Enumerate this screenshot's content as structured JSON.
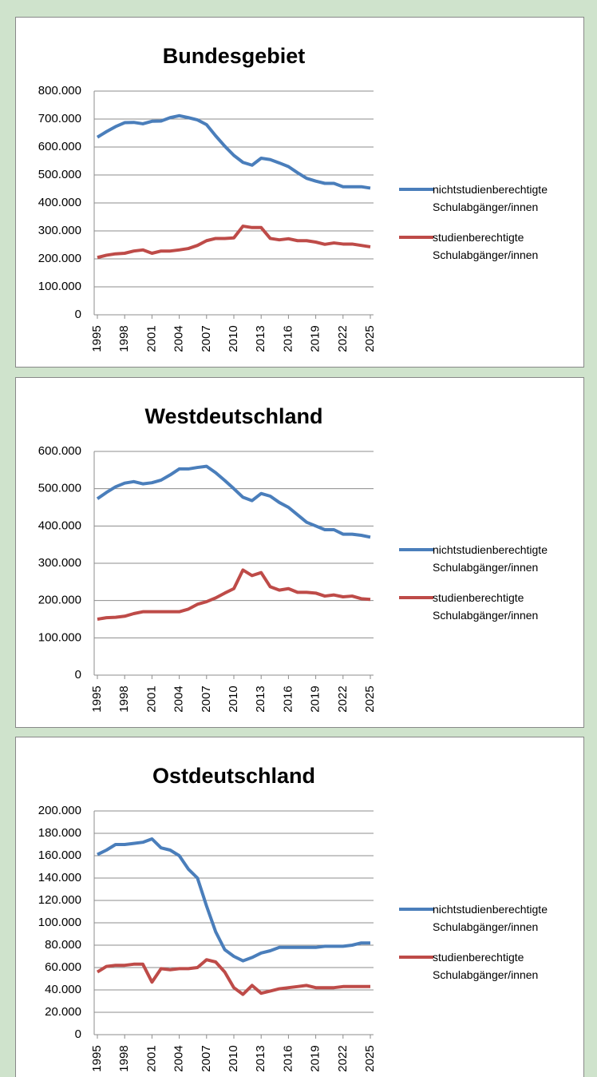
{
  "chart_data": [
    {
      "type": "line",
      "title": "Bundesgebiet",
      "x": [
        1995,
        1996,
        1997,
        1998,
        1999,
        2000,
        2001,
        2002,
        2003,
        2004,
        2005,
        2006,
        2007,
        2008,
        2009,
        2010,
        2011,
        2012,
        2013,
        2014,
        2015,
        2016,
        2017,
        2018,
        2019,
        2020,
        2021,
        2022,
        2023,
        2024,
        2025
      ],
      "xlim": [
        1995,
        2025
      ],
      "xticks": [
        1995,
        1998,
        2001,
        2004,
        2007,
        2010,
        2013,
        2016,
        2019,
        2022,
        2025
      ],
      "ylim": [
        0,
        800000
      ],
      "yticks": [
        0,
        {
          "value": 100000,
          "label": "100.000"
        },
        {
          "value": 200000,
          "label": "200.000"
        },
        {
          "value": 300000,
          "label": "300.000"
        },
        {
          "value": 400000,
          "label": "400.000"
        },
        {
          "value": 500000,
          "label": "500.000"
        },
        {
          "value": 600000,
          "label": "600.000"
        },
        {
          "value": 700000,
          "label": "700.000"
        },
        {
          "value": 800000,
          "label": "800.000"
        }
      ],
      "grid": true,
      "legend": "right",
      "series": [
        {
          "name": "nichtstudienberechtigte Schulabgänger/innen",
          "color": "#4a7ebb",
          "values": [
            635000,
            655000,
            673000,
            687000,
            688000,
            683000,
            692000,
            693000,
            705000,
            712000,
            705000,
            697000,
            680000,
            640000,
            603000,
            570000,
            545000,
            535000,
            560000,
            555000,
            543000,
            530000,
            508000,
            488000,
            478000,
            470000,
            470000,
            458000,
            458000,
            458000,
            453000
          ]
        },
        {
          "name": "studienberechtigte Schulabgänger/innen",
          "color": "#be4b48",
          "values": [
            205000,
            213000,
            218000,
            220000,
            228000,
            232000,
            220000,
            228000,
            228000,
            232000,
            237000,
            248000,
            265000,
            273000,
            273000,
            275000,
            317000,
            312000,
            312000,
            273000,
            268000,
            272000,
            265000,
            265000,
            260000,
            252000,
            257000,
            253000,
            253000,
            248000,
            243000
          ]
        }
      ]
    },
    {
      "type": "line",
      "title": "Westdeutschland",
      "x": [
        1995,
        1996,
        1997,
        1998,
        1999,
        2000,
        2001,
        2002,
        2003,
        2004,
        2005,
        2006,
        2007,
        2008,
        2009,
        2010,
        2011,
        2012,
        2013,
        2014,
        2015,
        2016,
        2017,
        2018,
        2019,
        2020,
        2021,
        2022,
        2023,
        2024,
        2025
      ],
      "xlim": [
        1995,
        2025
      ],
      "xticks": [
        1995,
        1998,
        2001,
        2004,
        2007,
        2010,
        2013,
        2016,
        2019,
        2022,
        2025
      ],
      "ylim": [
        0,
        600000
      ],
      "yticks": [
        0,
        {
          "value": 100000,
          "label": "100.000"
        },
        {
          "value": 200000,
          "label": "200.000"
        },
        {
          "value": 300000,
          "label": "300.000"
        },
        {
          "value": 400000,
          "label": "400.000"
        },
        {
          "value": 500000,
          "label": "500.000"
        },
        {
          "value": 600000,
          "label": "600.000"
        }
      ],
      "grid": true,
      "legend": "right",
      "series": [
        {
          "name": "nichtstudienberechtigte Schulabgänger/innen",
          "color": "#4a7ebb",
          "values": [
            473000,
            490000,
            505000,
            515000,
            519000,
            513000,
            516000,
            523000,
            537000,
            553000,
            553000,
            557000,
            560000,
            543000,
            522000,
            500000,
            477000,
            468000,
            487000,
            480000,
            463000,
            450000,
            430000,
            410000,
            400000,
            390000,
            390000,
            378000,
            378000,
            375000,
            370000
          ]
        },
        {
          "name": "studienberechtigte Schulabgänger/innen",
          "color": "#be4b48",
          "values": [
            150000,
            154000,
            155000,
            158000,
            165000,
            170000,
            170000,
            170000,
            170000,
            170000,
            177000,
            190000,
            197000,
            207000,
            220000,
            232000,
            282000,
            267000,
            275000,
            237000,
            228000,
            232000,
            222000,
            222000,
            220000,
            212000,
            215000,
            210000,
            212000,
            205000,
            203000
          ]
        }
      ]
    },
    {
      "type": "line",
      "title": "Ostdeutschland",
      "x": [
        1995,
        1996,
        1997,
        1998,
        1999,
        2000,
        2001,
        2002,
        2003,
        2004,
        2005,
        2006,
        2007,
        2008,
        2009,
        2010,
        2011,
        2012,
        2013,
        2014,
        2015,
        2016,
        2017,
        2018,
        2019,
        2020,
        2021,
        2022,
        2023,
        2024,
        2025
      ],
      "xlim": [
        1995,
        2025
      ],
      "xticks": [
        1995,
        1998,
        2001,
        2004,
        2007,
        2010,
        2013,
        2016,
        2019,
        2022,
        2025
      ],
      "ylim": [
        0,
        200000
      ],
      "yticks": [
        0,
        {
          "value": 20000,
          "label": "20.000"
        },
        {
          "value": 40000,
          "label": "40.000"
        },
        {
          "value": 60000,
          "label": "60.000"
        },
        {
          "value": 80000,
          "label": "80.000"
        },
        {
          "value": 100000,
          "label": "100.000"
        },
        {
          "value": 120000,
          "label": "120.000"
        },
        {
          "value": 140000,
          "label": "140.000"
        },
        {
          "value": 160000,
          "label": "160.000"
        },
        {
          "value": 180000,
          "label": "180.000"
        },
        {
          "value": 200000,
          "label": "200.000"
        }
      ],
      "grid": true,
      "legend": "right",
      "series": [
        {
          "name": "nichtstudienberechtigte Schulabgänger/innen",
          "color": "#4a7ebb",
          "values": [
            161000,
            165000,
            170000,
            170000,
            171000,
            172000,
            175000,
            167000,
            165000,
            160000,
            148000,
            140000,
            115000,
            92000,
            76000,
            70000,
            66000,
            69000,
            73000,
            75000,
            78000,
            78000,
            78000,
            78000,
            78000,
            79000,
            79000,
            79000,
            80000,
            82000,
            82000
          ]
        },
        {
          "name": "studienberechtigte Schulabgänger/innen",
          "color": "#be4b48",
          "values": [
            56000,
            61000,
            62000,
            62000,
            63000,
            63000,
            47000,
            59000,
            58000,
            59000,
            59000,
            60000,
            67000,
            65000,
            56000,
            42000,
            36000,
            44000,
            37000,
            39000,
            41000,
            42000,
            43000,
            44000,
            42000,
            42000,
            42000,
            43000,
            43000,
            43000,
            43000
          ]
        }
      ]
    }
  ]
}
